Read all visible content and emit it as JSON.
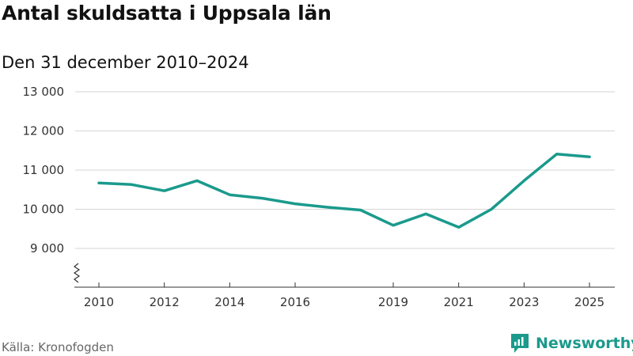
{
  "chart_data": {
    "type": "line",
    "title": "Antal skuldsatta i Uppsala län",
    "subtitle": "Den 31 december 2010–2024",
    "xlabel": "",
    "ylabel": "",
    "x_ticks": [
      2010,
      2012,
      2014,
      2016,
      2019,
      2021,
      2023,
      2025
    ],
    "x_tick_labels": [
      "2010",
      "2012",
      "2014",
      "2016",
      "2019",
      "2021",
      "2023",
      "2025"
    ],
    "y_ticks": [
      9000,
      10000,
      11000,
      12000,
      13000
    ],
    "y_tick_labels": [
      "9 000",
      "10 000",
      "11 000",
      "12 000",
      "13 000"
    ],
    "ylim": [
      8000,
      13000
    ],
    "axis_break": true,
    "grid": true,
    "series": [
      {
        "name": "Antal skuldsatta",
        "color": "#1a9a8c",
        "x": [
          2010,
          2011,
          2012,
          2013,
          2014,
          2015,
          2016,
          2017,
          2018,
          2019,
          2020,
          2021,
          2022,
          2023,
          2024,
          2025
        ],
        "values": [
          10670,
          10630,
          10470,
          10730,
          10370,
          10280,
          10140,
          10050,
          9980,
          9590,
          9880,
          9540,
          10000,
          10730,
          11410,
          11340
        ]
      }
    ]
  },
  "source": {
    "label": "Källa: Kronofogden"
  },
  "brand": {
    "name": "Newsworthy",
    "color": "#1a9a8c",
    "icon": "newsworthy-logo-icon"
  }
}
